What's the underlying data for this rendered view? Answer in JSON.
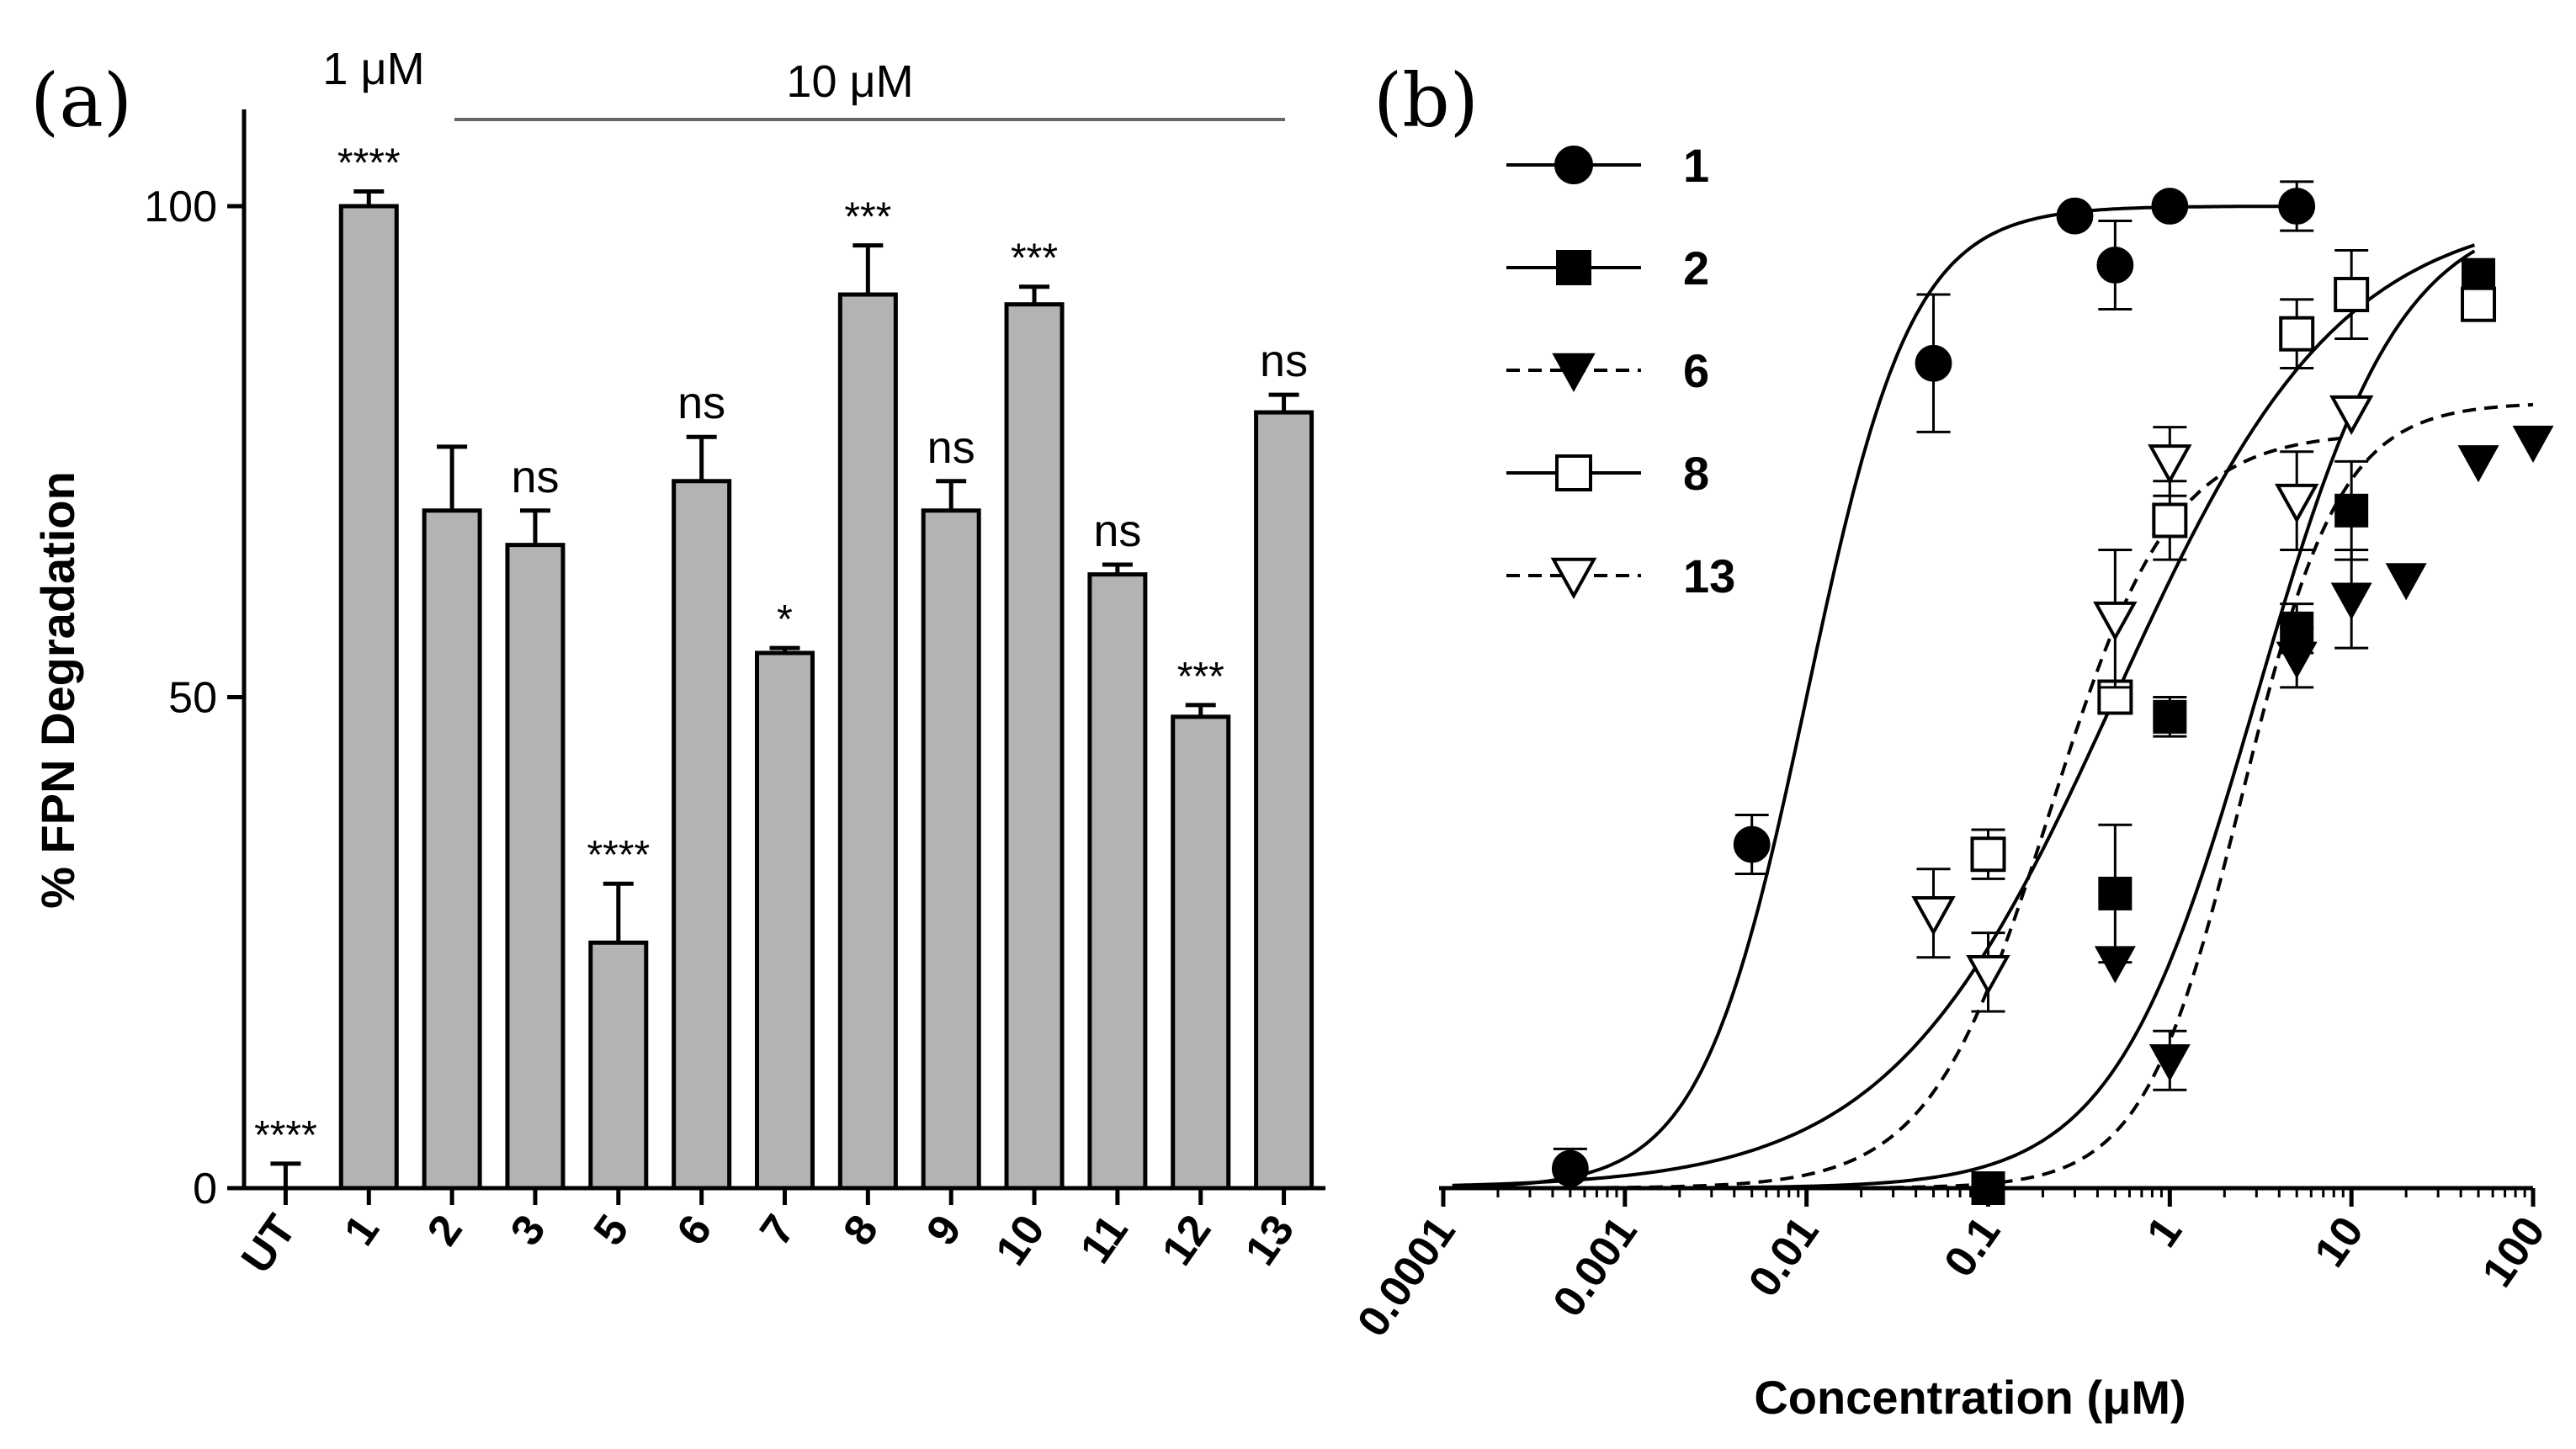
{
  "chart_data": [
    {
      "panel": "(a)",
      "type": "bar",
      "ylabel": "% FPN Degradation",
      "xlabel": "",
      "ylim": [
        0,
        110
      ],
      "yticks": [
        0,
        50,
        100
      ],
      "categories": [
        "UT",
        "1",
        "2",
        "3",
        "5",
        "6",
        "7",
        "8",
        "9",
        "10",
        "11",
        "12",
        "13"
      ],
      "values": [
        0,
        100,
        69,
        65.5,
        25,
        72,
        54.5,
        91,
        69,
        90,
        62.5,
        48,
        79
      ],
      "errors": [
        2.5,
        1.5,
        6.5,
        3.5,
        6,
        4.5,
        0.5,
        5,
        3,
        1.8,
        1,
        1.2,
        1.8
      ],
      "significance": [
        "****",
        "****",
        "",
        "ns",
        "****",
        "ns",
        "*",
        "***",
        "ns",
        "***",
        "ns",
        "***",
        "ns"
      ],
      "dose_labels": {
        "single": "1 μM",
        "range": "10 μM"
      },
      "bar_color": "#b3b3b3"
    },
    {
      "panel": "(b)",
      "type": "scatter",
      "xlabel": "Concentration (μM)",
      "ylabel": "",
      "xscale": "log",
      "xlim": [
        0.0001,
        100
      ],
      "ylim": [
        0,
        110
      ],
      "xticks": [
        "0.0001",
        "0.001",
        "0.01",
        "0.1",
        "1",
        "10",
        "100"
      ],
      "series": [
        {
          "name": "1",
          "marker": "circle-filled",
          "line": "solid",
          "x": [
            0.0005,
            0.005,
            0.05,
            0.3,
            0.5,
            1,
            5
          ],
          "y": [
            2,
            35,
            84,
            99,
            94,
            100,
            100
          ],
          "err": [
            2,
            3,
            7,
            0,
            4.5,
            0,
            2.5
          ],
          "fit": {
            "bottom": 0,
            "top": 100,
            "ec50": 0.01,
            "hill": 1.5
          }
        },
        {
          "name": "2",
          "marker": "square-filled",
          "line": "solid",
          "x": [
            0.1,
            0.5,
            1,
            5,
            10,
            50
          ],
          "y": [
            0,
            30,
            48,
            57,
            69,
            93
          ],
          "err": [
            0,
            7,
            2,
            2.5,
            5,
            0
          ],
          "fit": {
            "bottom": 0,
            "top": 100,
            "ec50": 3,
            "hill": 1.1
          }
        },
        {
          "name": "6",
          "marker": "triangle-down-filled",
          "line": "dashed",
          "x": [
            0.5,
            1,
            5,
            10,
            20,
            50,
            100
          ],
          "y": [
            23,
            13,
            54,
            60,
            62,
            74,
            76
          ],
          "err": [
            0,
            3,
            3,
            5,
            0,
            0,
            0
          ],
          "fit": {
            "bottom": 0,
            "top": 80,
            "ec50": 2.5,
            "hill": 1.6
          }
        },
        {
          "name": "8",
          "marker": "square-open",
          "line": "solid",
          "x": [
            0.1,
            0.5,
            1,
            5,
            10,
            50
          ],
          "y": [
            34,
            50,
            68,
            87,
            91,
            90
          ],
          "err": [
            2.5,
            0,
            4,
            3.5,
            4.5,
            0
          ],
          "fit": {
            "bottom": 0,
            "top": 100,
            "ec50": 0.5,
            "hill": 0.7
          }
        },
        {
          "name": "13",
          "marker": "triangle-down-open",
          "line": "dashed",
          "x": [
            0.05,
            0.1,
            0.5,
            1,
            5,
            10
          ],
          "y": [
            28,
            22,
            58,
            74,
            70,
            79
          ],
          "err": [
            4.5,
            4,
            7,
            3.5,
            5,
            0
          ],
          "fit": {
            "bottom": 0,
            "top": 77,
            "ec50": 0.22,
            "hill": 1.3
          }
        }
      ]
    }
  ]
}
